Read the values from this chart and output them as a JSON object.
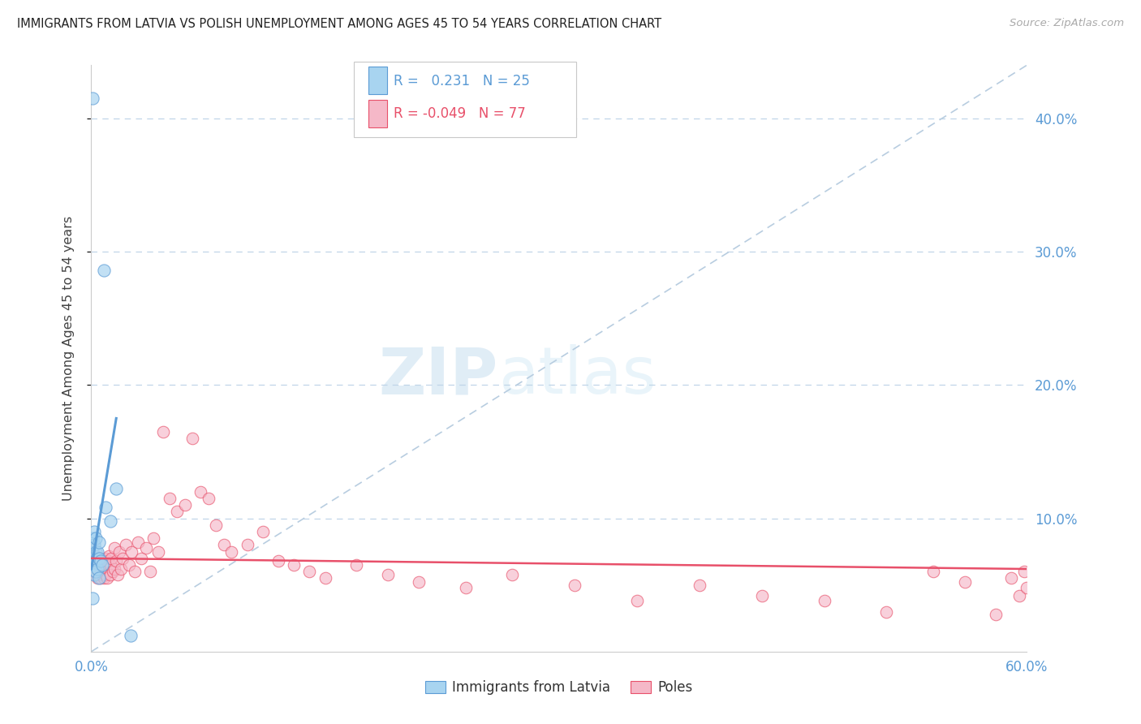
{
  "title": "IMMIGRANTS FROM LATVIA VS POLISH UNEMPLOYMENT AMONG AGES 45 TO 54 YEARS CORRELATION CHART",
  "source": "Source: ZipAtlas.com",
  "ylabel": "Unemployment Among Ages 45 to 54 years",
  "xlim": [
    0.0,
    0.6
  ],
  "ylim": [
    0.0,
    0.44
  ],
  "yticks": [
    0.1,
    0.2,
    0.3,
    0.4
  ],
  "xticks": [
    0.0,
    0.6
  ],
  "legend_r_latvia": "0.231",
  "legend_n_latvia": "25",
  "legend_r_poles": "-0.049",
  "legend_n_poles": "77",
  "color_latvia": "#A8D4F0",
  "color_poles": "#F5B8C8",
  "line_color_latvia": "#5B9BD5",
  "line_color_poles": "#E8506A",
  "diag_line_color": "#B8CDE0",
  "watermark_zip": "ZIP",
  "watermark_atlas": "atlas",
  "latvia_x": [
    0.001,
    0.001,
    0.001,
    0.001,
    0.001,
    0.002,
    0.002,
    0.002,
    0.003,
    0.003,
    0.003,
    0.003,
    0.004,
    0.004,
    0.005,
    0.005,
    0.005,
    0.006,
    0.007,
    0.008,
    0.009,
    0.012,
    0.016,
    0.025,
    0.001
  ],
  "latvia_y": [
    0.415,
    0.085,
    0.075,
    0.07,
    0.065,
    0.09,
    0.08,
    0.058,
    0.085,
    0.075,
    0.068,
    0.06,
    0.075,
    0.062,
    0.082,
    0.07,
    0.055,
    0.068,
    0.065,
    0.286,
    0.108,
    0.098,
    0.122,
    0.012,
    0.04
  ],
  "latvia_line_x": [
    0.0,
    0.016
  ],
  "latvia_line_y": [
    0.062,
    0.175
  ],
  "poles_line_x": [
    0.0,
    0.6
  ],
  "poles_line_y": [
    0.07,
    0.062
  ],
  "poles_x": [
    0.001,
    0.002,
    0.002,
    0.003,
    0.003,
    0.004,
    0.004,
    0.004,
    0.005,
    0.005,
    0.006,
    0.006,
    0.006,
    0.007,
    0.007,
    0.008,
    0.008,
    0.009,
    0.009,
    0.01,
    0.01,
    0.011,
    0.012,
    0.012,
    0.013,
    0.014,
    0.015,
    0.015,
    0.016,
    0.017,
    0.018,
    0.019,
    0.02,
    0.022,
    0.024,
    0.026,
    0.028,
    0.03,
    0.032,
    0.035,
    0.038,
    0.04,
    0.043,
    0.046,
    0.05,
    0.055,
    0.06,
    0.065,
    0.07,
    0.075,
    0.08,
    0.085,
    0.09,
    0.1,
    0.11,
    0.12,
    0.13,
    0.14,
    0.15,
    0.17,
    0.19,
    0.21,
    0.24,
    0.27,
    0.31,
    0.35,
    0.39,
    0.43,
    0.47,
    0.51,
    0.54,
    0.56,
    0.58,
    0.59,
    0.595,
    0.598,
    0.6
  ],
  "poles_y": [
    0.07,
    0.065,
    0.06,
    0.072,
    0.062,
    0.068,
    0.06,
    0.055,
    0.065,
    0.058,
    0.07,
    0.062,
    0.055,
    0.068,
    0.058,
    0.065,
    0.055,
    0.07,
    0.058,
    0.068,
    0.055,
    0.072,
    0.065,
    0.058,
    0.07,
    0.06,
    0.078,
    0.062,
    0.068,
    0.058,
    0.075,
    0.062,
    0.07,
    0.08,
    0.065,
    0.075,
    0.06,
    0.082,
    0.07,
    0.078,
    0.06,
    0.085,
    0.075,
    0.165,
    0.115,
    0.105,
    0.11,
    0.16,
    0.12,
    0.115,
    0.095,
    0.08,
    0.075,
    0.08,
    0.09,
    0.068,
    0.065,
    0.06,
    0.055,
    0.065,
    0.058,
    0.052,
    0.048,
    0.058,
    0.05,
    0.038,
    0.05,
    0.042,
    0.038,
    0.03,
    0.06,
    0.052,
    0.028,
    0.055,
    0.042,
    0.06,
    0.048
  ]
}
